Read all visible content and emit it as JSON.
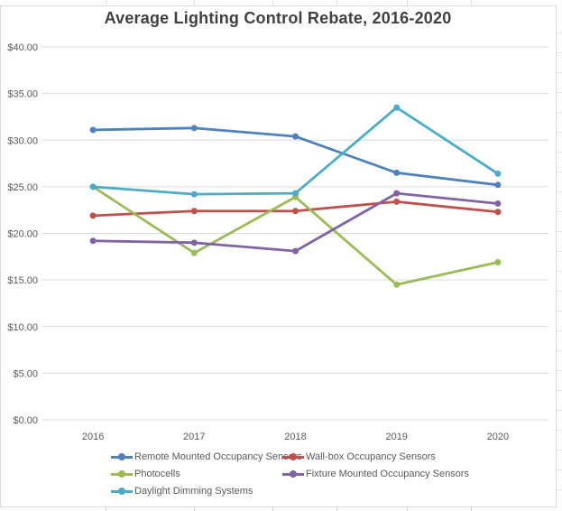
{
  "chart_data": {
    "type": "line",
    "title": "Average Lighting Control Rebate, 2016-2020",
    "categories": [
      "2016",
      "2017",
      "2018",
      "2019",
      "2020"
    ],
    "series": [
      {
        "name": "Remote Mounted Occupancy Sensors",
        "color": "#4F81BD",
        "values": [
          31.1,
          31.3,
          30.4,
          26.5,
          25.2
        ]
      },
      {
        "name": "Wall-box Occupancy Sensors",
        "color": "#C0504D",
        "values": [
          21.9,
          22.4,
          22.4,
          23.4,
          22.3
        ]
      },
      {
        "name": "Photocells",
        "color": "#9BBB59",
        "values": [
          25.0,
          17.9,
          23.9,
          14.5,
          16.9
        ]
      },
      {
        "name": "Fixture Mounted Occupancy Sensors",
        "color": "#8064A2",
        "values": [
          19.2,
          19.0,
          18.1,
          24.3,
          23.2
        ]
      },
      {
        "name": "Daylight Dimming Systems",
        "color": "#4BACC6",
        "values": [
          25.0,
          24.2,
          24.3,
          33.5,
          26.4
        ]
      }
    ],
    "y_axis": {
      "min": 0,
      "max": 40,
      "step": 5,
      "tick_labels": [
        "$0.00",
        "$5.00",
        "$10.00",
        "$15.00",
        "$20.00",
        "$25.00",
        "$30.00",
        "$35.00",
        "$40.00"
      ]
    },
    "xlabel": "",
    "ylabel": "",
    "grid": true,
    "marker": "circle",
    "legend_position": "bottom-left"
  },
  "styles": {
    "gridline": "#D9D9D9",
    "axis_text": "#595959",
    "title_color": "#404040",
    "frame": "#D8D8D8"
  }
}
